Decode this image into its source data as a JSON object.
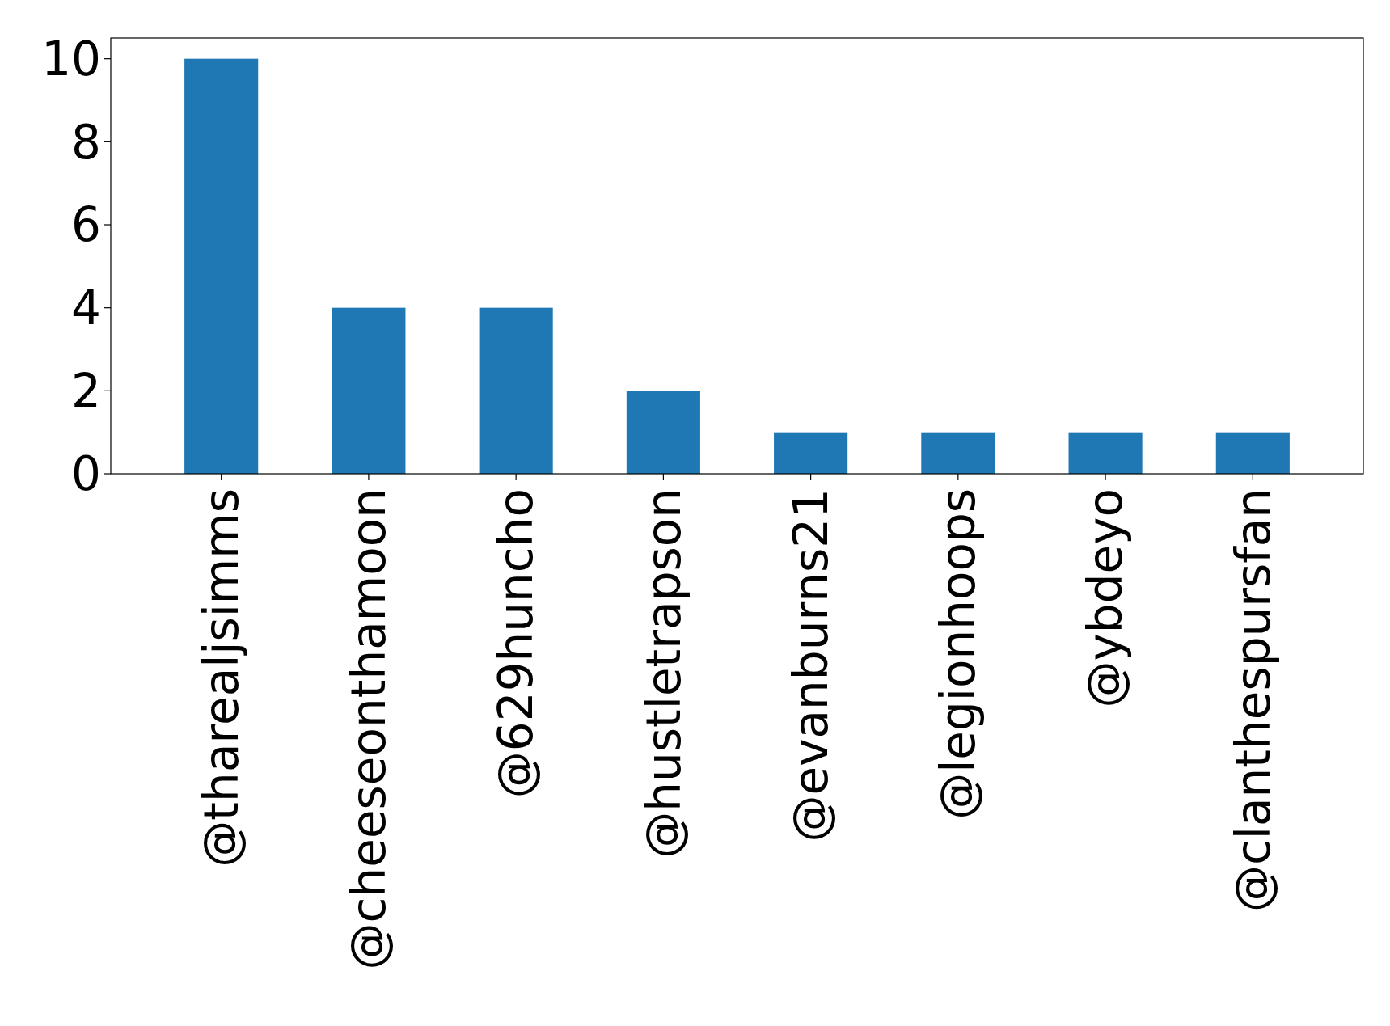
{
  "chart_data": {
    "type": "bar",
    "categories": [
      "@tharealjsimms",
      "@cheeseonthamoon",
      "@629huncho",
      "@hustletrapson",
      "@evanburns21",
      "@legionhoops",
      "@ybdeyo",
      "@clanthespursfan"
    ],
    "values": [
      10,
      4,
      4,
      2,
      1,
      1,
      1,
      1
    ],
    "color": "#1f77b4",
    "ylim": [
      0,
      10.5
    ],
    "yticks": [
      0,
      2,
      4,
      6,
      8,
      10
    ],
    "grid": false
  }
}
